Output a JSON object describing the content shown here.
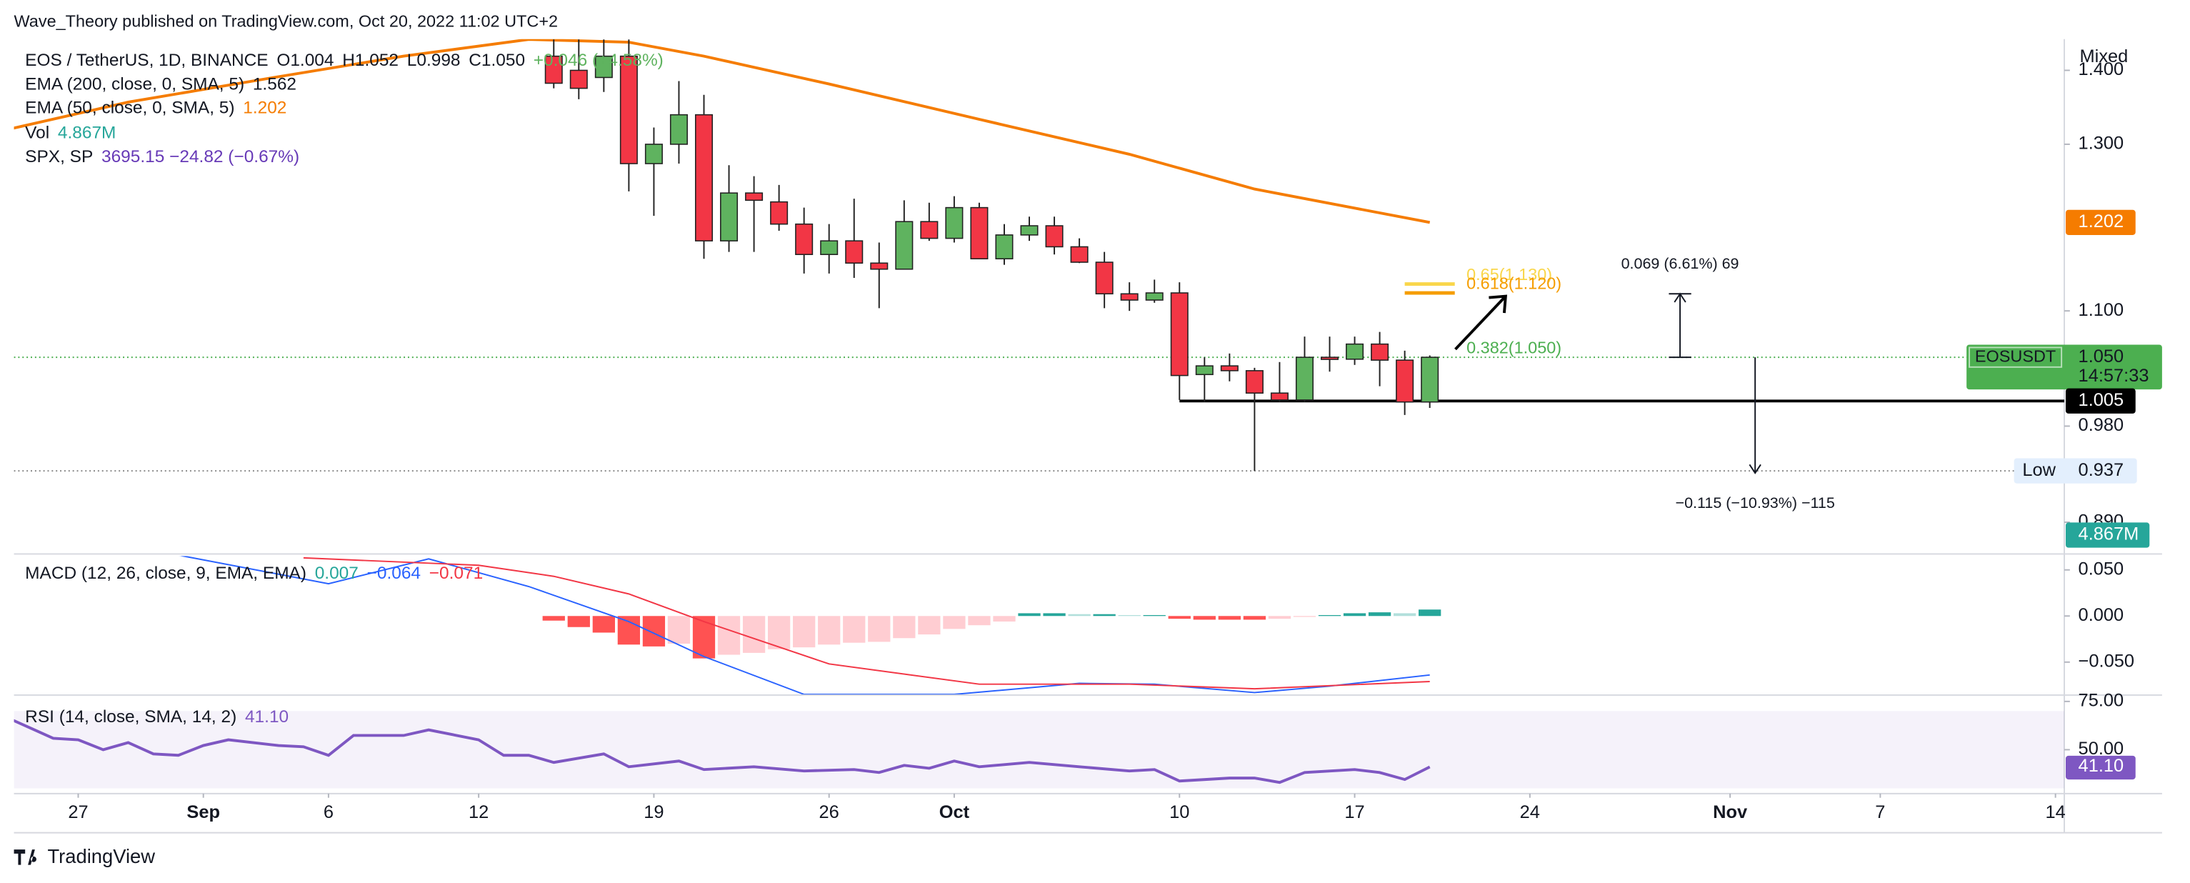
{
  "header": {
    "publisher": "Wave_Theory published on TradingView.com, Oct 20, 2022 11:02 UTC+2",
    "scale_mode": "Mixed"
  },
  "footer": {
    "brand": "TradingView"
  },
  "chart_data": [
    {
      "type": "candlestick",
      "symbol": "EOS / TetherUS, 1D, BINANCE",
      "ohlc_labels": [
        "O1.004",
        "H1.052",
        "L0.998",
        "C1.050"
      ],
      "change_label": "+0.046 (+4.58%)",
      "x": [
        "Sep 15",
        "Sep 16",
        "Sep 17",
        "Sep 18",
        "Sep 19",
        "Sep 20",
        "Sep 21",
        "Sep 22",
        "Sep 23",
        "Sep 24",
        "Sep 25",
        "Sep 26",
        "Sep 27",
        "Sep 28",
        "Sep 29",
        "Sep 30",
        "Oct 1",
        "Oct 2",
        "Oct 3",
        "Oct 4",
        "Oct 5",
        "Oct 6",
        "Oct 7",
        "Oct 8",
        "Oct 9",
        "Oct 10",
        "Oct 11",
        "Oct 12",
        "Oct 13",
        "Oct 14",
        "Oct 15",
        "Oct 16",
        "Oct 17",
        "Oct 18",
        "Oct 19",
        "Oct 20"
      ],
      "open": [
        1.42,
        1.4,
        1.39,
        1.42,
        1.275,
        1.3,
        1.339,
        1.18,
        1.238,
        1.227,
        1.2,
        1.164,
        1.18,
        1.154,
        1.147,
        1.203,
        1.183,
        1.22,
        1.159,
        1.187,
        1.198,
        1.173,
        1.155,
        1.119,
        1.112,
        1.12,
        1.032,
        1.041,
        1.036,
        1.013,
        1.006,
        1.05,
        1.048,
        1.064,
        1.047,
        1.004
      ],
      "high": [
        1.444,
        1.444,
        1.444,
        1.444,
        1.322,
        1.385,
        1.366,
        1.273,
        1.259,
        1.248,
        1.22,
        1.2,
        1.231,
        1.178,
        1.229,
        1.226,
        1.234,
        1.226,
        1.2,
        1.209,
        1.209,
        1.183,
        1.167,
        1.132,
        1.135,
        1.132,
        1.05,
        1.054,
        1.039,
        1.045,
        1.072,
        1.072,
        1.072,
        1.077,
        1.057,
        1.052
      ],
      "low": [
        1.375,
        1.36,
        1.37,
        1.24,
        1.21,
        1.275,
        1.159,
        1.167,
        1.167,
        1.192,
        1.142,
        1.142,
        1.137,
        1.103,
        1.147,
        1.18,
        1.178,
        1.159,
        1.152,
        1.18,
        1.164,
        1.154,
        1.103,
        1.1,
        1.109,
        1.006,
        1.004,
        1.025,
        0.937,
        1.004,
        1.004,
        1.035,
        1.042,
        1.02,
        0.991,
        0.998
      ],
      "close": [
        1.382,
        1.375,
        1.42,
        1.275,
        1.3,
        1.339,
        1.18,
        1.238,
        1.229,
        1.2,
        1.164,
        1.18,
        1.154,
        1.147,
        1.203,
        1.183,
        1.22,
        1.159,
        1.187,
        1.198,
        1.173,
        1.155,
        1.119,
        1.112,
        1.12,
        1.031,
        1.041,
        1.036,
        1.013,
        1.006,
        1.05,
        1.048,
        1.064,
        1.047,
        1.004,
        1.05
      ],
      "up_color": "#5fb35f",
      "down_color": "#f23645",
      "log_scale": true,
      "xlim": [
        "Aug 24",
        "Nov 15"
      ],
      "xticks": [
        {
          "value": "Aug 27",
          "label": "27"
        },
        {
          "value": "Sep 1",
          "label": "Sep"
        },
        {
          "value": "Sep 6",
          "label": "6"
        },
        {
          "value": "Sep 12",
          "label": "12"
        },
        {
          "value": "Sep 19",
          "label": "19"
        },
        {
          "value": "Sep 26",
          "label": "26"
        },
        {
          "value": "Oct 1",
          "label": "Oct"
        },
        {
          "value": "Oct 10",
          "label": "10"
        },
        {
          "value": "Oct 17",
          "label": "17"
        },
        {
          "value": "Oct 24",
          "label": "24"
        },
        {
          "value": "Nov 1",
          "label": "Nov"
        },
        {
          "value": "Nov 7",
          "label": "7"
        },
        {
          "value": "Nov 14",
          "label": "14"
        }
      ],
      "ylim": [
        0.8627,
        1.4445
      ],
      "yticks": [
        {
          "value": 1.4,
          "label": "1.400"
        },
        {
          "value": 1.3,
          "label": "1.300"
        },
        {
          "value": 1.1,
          "label": "1.100"
        },
        {
          "value": 0.98,
          "label": "0.980"
        },
        {
          "value": 0.89,
          "label": "0.890"
        }
      ],
      "indicators": [
        {
          "name": "EMA (200, close, 0, SMA, 5)",
          "value_label": "1.562",
          "color": "#131722"
        },
        {
          "name": "Vol",
          "value_label": "4.867M",
          "color": "#26a69a"
        },
        {
          "name": "SPX, SP",
          "value_label": "3695.15  −24.82 (−0.67%)",
          "color": "#673ab7"
        }
      ],
      "series": [
        {
          "name": "EMA (50, close, 0, SMA, 5)",
          "value_label": "1.202",
          "color": "#f57c00",
          "x": [
            "Aug 24",
            "Aug 29",
            "Sep 4",
            "Sep 9",
            "Sep 14",
            "Sep 18",
            "Sep 21",
            "Sep 26",
            "Oct 2",
            "Oct 8",
            "Oct 13",
            "Oct 20"
          ],
          "values": [
            1.318,
            1.356,
            1.391,
            1.42,
            1.444,
            1.44,
            1.42,
            1.381,
            1.333,
            1.287,
            1.243,
            1.202
          ]
        }
      ],
      "price_tags": [
        {
          "label": "1.202",
          "value": 1.202,
          "color": "#f57c00"
        },
        {
          "name": "EOSUSDT",
          "label": "1.050",
          "value": 1.05,
          "countdown": "14:57:33",
          "color": "#4caf50",
          "line": "dotted"
        },
        {
          "label": "1.005",
          "value": 1.005,
          "color": "#000000"
        },
        {
          "name": "Low",
          "label": "0.937",
          "value": 0.937,
          "color": "#e3effd",
          "line": "dotted"
        }
      ],
      "support": {
        "value": 1.005,
        "from": "Oct 10"
      },
      "fib_levels": [
        {
          "label": "0.65(1.130)",
          "value": 1.13,
          "color": "#f9d64a",
          "from": "Oct 19",
          "to": "Oct 21"
        },
        {
          "label": "0.618(1.120)",
          "value": 1.12,
          "color": "#f59d00",
          "from": "Oct 19",
          "to": "Oct 21"
        },
        {
          "label": "0.382(1.050)",
          "value": 1.05,
          "color": "#4caf50"
        }
      ],
      "measures": [
        {
          "label": "0.069 (6.61%) 69",
          "x": "Oct 30",
          "from": 1.05,
          "to": 1.119
        },
        {
          "label": "−0.115 (−10.93%) −115",
          "x": "Nov 2",
          "from": 1.05,
          "to": 0.935
        }
      ]
    },
    {
      "type": "macd",
      "title": "MACD (12, 26, close, 9, EMA, EMA)",
      "x": [
        "Sep 15",
        "Sep 16",
        "Sep 17",
        "Sep 18",
        "Sep 19",
        "Sep 20",
        "Sep 21",
        "Sep 22",
        "Sep 23",
        "Sep 24",
        "Sep 25",
        "Sep 26",
        "Sep 27",
        "Sep 28",
        "Sep 29",
        "Sep 30",
        "Oct 1",
        "Oct 2",
        "Oct 3",
        "Oct 4",
        "Oct 5",
        "Oct 6",
        "Oct 7",
        "Oct 8",
        "Oct 9",
        "Oct 10",
        "Oct 11",
        "Oct 12",
        "Oct 13",
        "Oct 14",
        "Oct 15",
        "Oct 16",
        "Oct 17",
        "Oct 18",
        "Oct 19",
        "Oct 20"
      ],
      "histogram": {
        "value_label": "0.007",
        "color": "#26a69a",
        "values": [
          -0.005,
          -0.012,
          -0.018,
          -0.031,
          -0.033,
          -0.03,
          -0.046,
          -0.042,
          -0.04,
          -0.036,
          -0.034,
          -0.031,
          -0.029,
          -0.028,
          -0.024,
          -0.02,
          -0.014,
          -0.01,
          -0.006,
          0.003,
          0.003,
          0.002,
          0.002,
          0.001,
          0.001,
          -0.003,
          -0.004,
          -0.004,
          -0.004,
          -0.003,
          -0.001,
          0.001,
          0.003,
          0.004,
          0.003,
          0.007
        ]
      },
      "lines": [
        {
          "value_label": "−0.064",
          "color": "#2962ff",
          "x": [
            "Aug 31",
            "Sep 6",
            "Sep 10",
            "Sep 14",
            "Sep 18",
            "Sep 21",
            "Sep 25",
            "Oct 1",
            "Oct 6",
            "Oct 9",
            "Oct 13",
            "Oct 16",
            "Oct 20"
          ],
          "values": [
            0.066,
            0.035,
            0.062,
            0.032,
            -0.006,
            -0.044,
            -0.085,
            -0.085,
            -0.073,
            -0.074,
            -0.083,
            -0.076,
            -0.064
          ]
        },
        {
          "value_label": "−0.071",
          "color": "#f23645",
          "x": [
            "Sep 5",
            "Sep 12",
            "Sep 15",
            "Sep 18",
            "Sep 21",
            "Sep 26",
            "Oct 2",
            "Oct 8",
            "Oct 13",
            "Oct 20"
          ],
          "values": [
            0.063,
            0.055,
            0.043,
            0.024,
            -0.006,
            -0.052,
            -0.074,
            -0.074,
            -0.079,
            -0.071
          ]
        }
      ],
      "ylim": [
        -0.085,
        0.065
      ],
      "yticks": [
        {
          "value": 0.05,
          "label": "0.050"
        },
        {
          "value": 0,
          "label": "0.000"
        },
        {
          "value": -0.05,
          "label": "−0.050"
        }
      ]
    },
    {
      "type": "rsi",
      "title": "RSI (14, close, SMA, 14, 2)",
      "value_label": "41.10",
      "color": "#7e57c2",
      "x": [
        "Aug 24",
        "Aug 26",
        "Aug 27",
        "Aug 28",
        "Aug 29",
        "Aug 30",
        "Aug 31",
        "Sep 1",
        "Sep 2",
        "Sep 4",
        "Sep 5",
        "Sep 6",
        "Sep 7",
        "Sep 9",
        "Sep 10",
        "Sep 12",
        "Sep 13",
        "Sep 14",
        "Sep 15",
        "Sep 17",
        "Sep 18",
        "Sep 20",
        "Sep 21",
        "Sep 23",
        "Sep 25",
        "Sep 27",
        "Sep 28",
        "Sep 29",
        "Sep 30",
        "Oct 1",
        "Oct 2",
        "Oct 4",
        "Oct 6",
        "Oct 8",
        "Oct 9",
        "Oct 10",
        "Oct 12",
        "Oct 13",
        "Oct 14",
        "Oct 15",
        "Oct 17",
        "Oct 18",
        "Oct 19",
        "Oct 20"
      ],
      "values": [
        67.6,
        55.9,
        55.1,
        50,
        53.7,
        47.8,
        47.1,
        52.2,
        55.1,
        52.2,
        51.5,
        47.1,
        57.4,
        57.4,
        60.3,
        55.1,
        47.1,
        47.1,
        43.4,
        47.8,
        41.2,
        44.1,
        39.7,
        41.2,
        39,
        39.7,
        38.2,
        41.9,
        40.4,
        44.1,
        41.2,
        43.4,
        41.2,
        39,
        39.7,
        33.8,
        35.3,
        35.3,
        33.1,
        38.2,
        39.7,
        38.2,
        34.6,
        41.1
      ],
      "ylim": [
        28,
        77.2
      ],
      "yticks": [
        {
          "value": 75,
          "label": "75.00"
        },
        {
          "value": 50,
          "label": "50.00"
        }
      ],
      "band": [
        30,
        70
      ]
    }
  ]
}
